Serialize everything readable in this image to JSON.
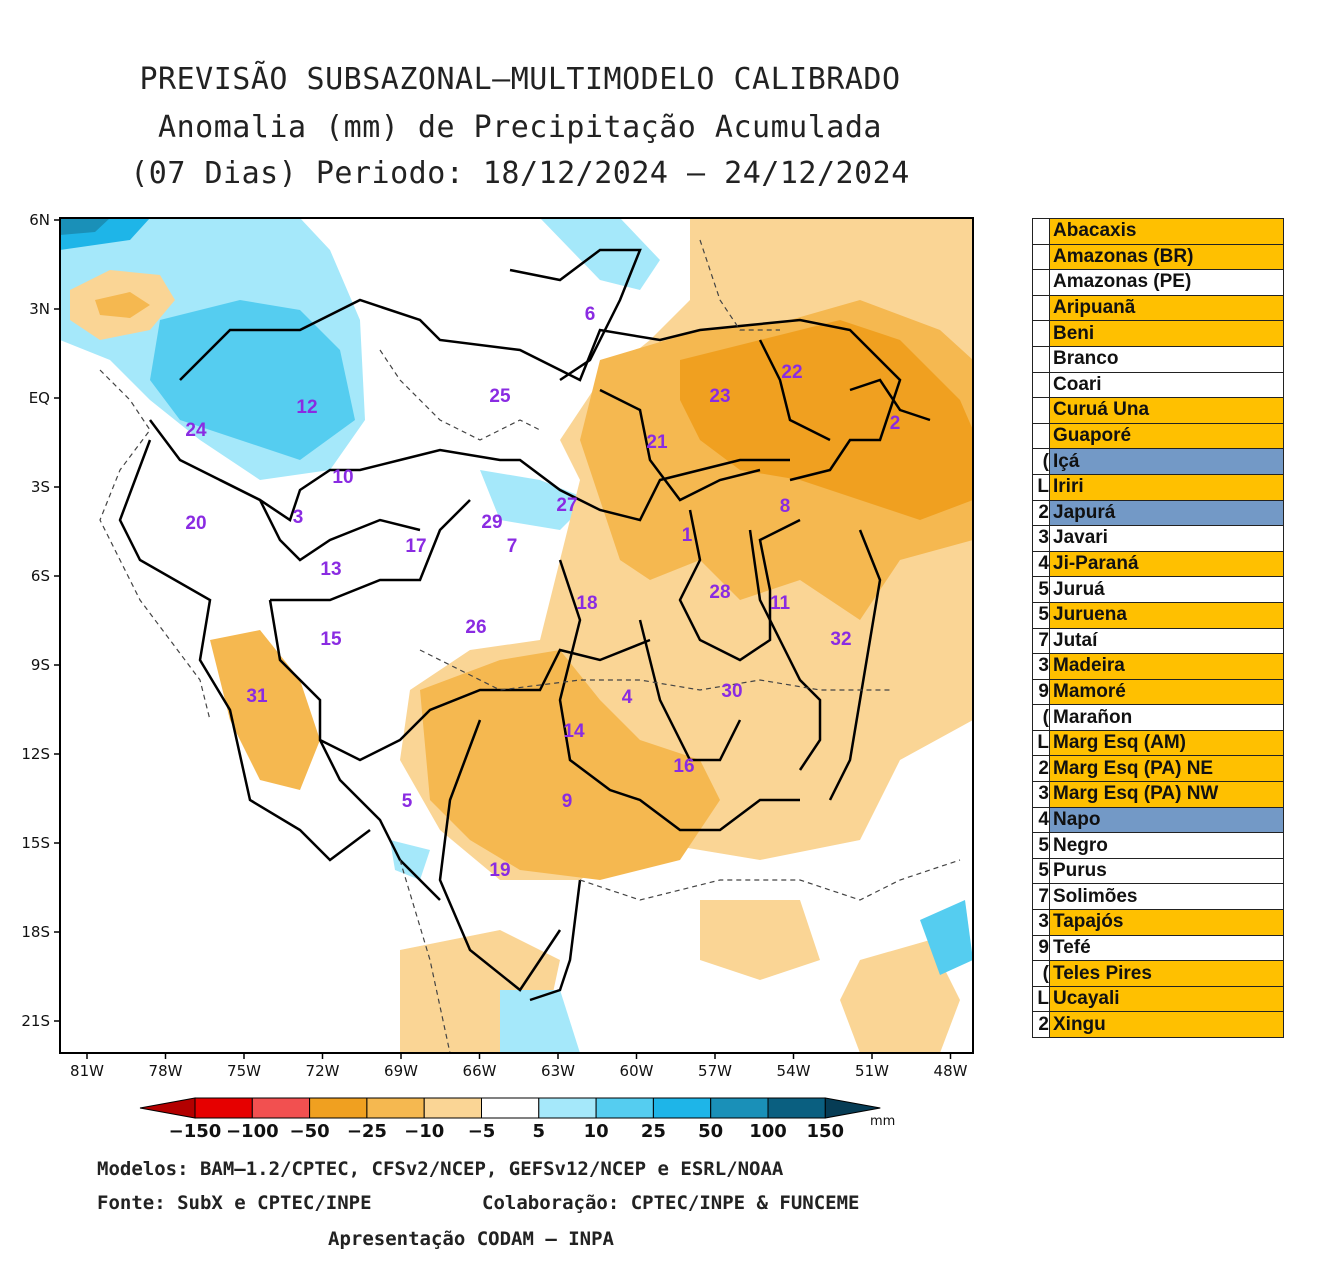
{
  "title": {
    "line1": "PREVISÃO SUBSAZONAL—MULTIMODELO CALIBRADO",
    "line2": "Anomalia (mm) de Precipitação Acumulada",
    "line3": "(07 Dias) Periodo: 18/12/2024 — 24/12/2024"
  },
  "map": {
    "lat_labels": [
      "6N",
      "3N",
      "EQ",
      "3S",
      "6S",
      "9S",
      "12S",
      "15S",
      "18S",
      "21S"
    ],
    "lon_labels": [
      "81W",
      "78W",
      "75W",
      "72W",
      "69W",
      "66W",
      "63W",
      "60W",
      "57W",
      "54W",
      "51W",
      "48W"
    ],
    "basin_numbers": [
      "6",
      "25",
      "12",
      "24",
      "23",
      "22",
      "2",
      "21",
      "10",
      "27",
      "3",
      "29",
      "20",
      "17",
      "7",
      "1",
      "8",
      "13",
      "18",
      "28",
      "11",
      "32",
      "15",
      "26",
      "31",
      "4",
      "30",
      "14",
      "16",
      "5",
      "9",
      "19"
    ]
  },
  "basins": [
    {
      "num": "",
      "name": "Abacaxis",
      "color": "#FFC000"
    },
    {
      "num": "",
      "name": "Amazonas (BR)",
      "color": "#FFC000"
    },
    {
      "num": "",
      "name": "Amazonas (PE)",
      "color": "#FFFFFF"
    },
    {
      "num": "",
      "name": "Aripuanã",
      "color": "#FFC000"
    },
    {
      "num": "",
      "name": "Beni",
      "color": "#FFC000"
    },
    {
      "num": "",
      "name": "Branco",
      "color": "#FFFFFF"
    },
    {
      "num": "",
      "name": "Coari",
      "color": "#FFFFFF"
    },
    {
      "num": "",
      "name": "Curuá Una",
      "color": "#FFC000"
    },
    {
      "num": "",
      "name": "Guaporé",
      "color": "#FFC000"
    },
    {
      "num": ")",
      "name": "Içá",
      "color": "#7399C6"
    },
    {
      "num": "L",
      "name": "Iriri",
      "color": "#FFC000"
    },
    {
      "num": "2",
      "name": "Japurá",
      "color": "#7399C6"
    },
    {
      "num": "3",
      "name": "Javari",
      "color": "#FFFFFF"
    },
    {
      "num": "4",
      "name": "Ji-Paraná",
      "color": "#FFC000"
    },
    {
      "num": "5",
      "name": "Juruá",
      "color": "#FFFFFF"
    },
    {
      "num": "5",
      "name": "Juruena",
      "color": "#FFC000"
    },
    {
      "num": "7",
      "name": "Jutaí",
      "color": "#FFFFFF"
    },
    {
      "num": "3",
      "name": "Madeira",
      "color": "#FFC000"
    },
    {
      "num": "9",
      "name": "Mamoré",
      "color": "#FFC000"
    },
    {
      "num": ")",
      "name": "Marañon",
      "color": "#FFFFFF"
    },
    {
      "num": "L",
      "name": "Marg Esq (AM)",
      "color": "#FFC000"
    },
    {
      "num": "2",
      "name": "Marg Esq (PA) NE",
      "color": "#FFC000"
    },
    {
      "num": "3",
      "name": "Marg Esq (PA) NW",
      "color": "#FFC000"
    },
    {
      "num": "4",
      "name": "Napo",
      "color": "#7399C6"
    },
    {
      "num": "5",
      "name": "Negro",
      "color": "#FFFFFF"
    },
    {
      "num": "5",
      "name": "Purus",
      "color": "#FFFFFF"
    },
    {
      "num": "7",
      "name": "Solimões",
      "color": "#FFFFFF"
    },
    {
      "num": "3",
      "name": "Tapajós",
      "color": "#FFC000"
    },
    {
      "num": "9",
      "name": "Tefé",
      "color": "#FFFFFF"
    },
    {
      "num": ")",
      "name": "Teles Pires",
      "color": "#FFC000"
    },
    {
      "num": "L",
      "name": "Ucayali",
      "color": "#FFC000"
    },
    {
      "num": "2",
      "name": "Xingu",
      "color": "#FFC000"
    }
  ],
  "colorbar": {
    "labels": [
      "−150",
      "−100",
      "−50",
      "−25",
      "−10",
      "−5",
      "5",
      "10",
      "25",
      "50",
      "100",
      "150"
    ],
    "unit": "mm",
    "colors": [
      "#b30000",
      "#e60000",
      "#f25050",
      "#f0a020",
      "#f5b850",
      "#fad595",
      "#ffffff",
      "#a5e8fa",
      "#55cdf0",
      "#1eb5e8",
      "#1a90b8",
      "#0a5f80",
      "#063c55"
    ]
  },
  "footer": {
    "models": "Modelos: BAM—1.2/CPTEC, CFSv2/NCEP, GEFSv12/NCEP e ESRL/NOAA",
    "source": "Fonte: SubX e CPTEC/INPE",
    "collab": "Colaboração: CPTEC/INPE & FUNCEME",
    "presentation": "Apresentação CODAM — INPA"
  }
}
